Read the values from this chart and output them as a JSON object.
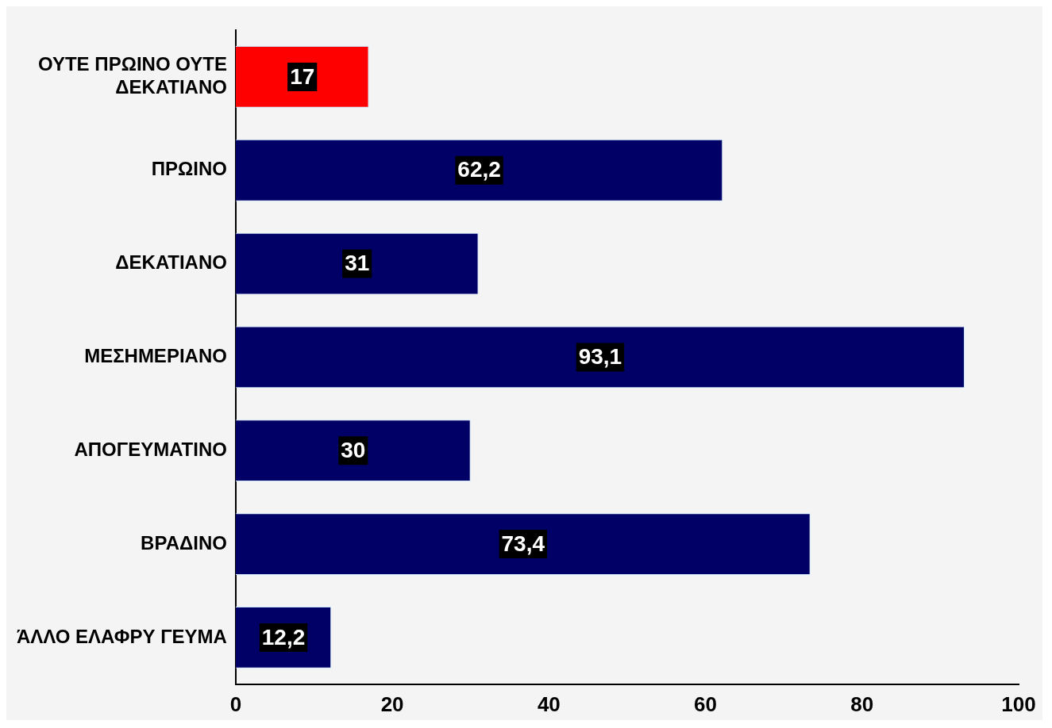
{
  "chart_data": {
    "type": "bar",
    "orientation": "horizontal",
    "categories": [
      "ΟΥΤΕ ΠΡΩΙΝΟ ΟΥΤΕ ΔΕΚΑΤΙΑΝΟ",
      "ΠΡΩΙΝΟ",
      "ΔΕΚΑΤΙΑΝΟ",
      "ΜΕΣΗΜΕΡΙΑΝΟ",
      "ΑΠΟΓΕΥΜΑΤΙΝΟ",
      "ΒΡΑΔΙΝΟ",
      "ΆΛΛΟ ΕΛΑΦΡΥ ΓΕΥΜΑ"
    ],
    "values": [
      17,
      62.2,
      31,
      93.1,
      30,
      73.4,
      12.2
    ],
    "colors": [
      "#ff0000",
      "#000066",
      "#000066",
      "#000066",
      "#000066",
      "#000066",
      "#000066"
    ],
    "value_labels": [
      "17",
      "62,2",
      "31",
      "93,1",
      "30",
      "73,4",
      "12,2"
    ],
    "xlim": [
      0,
      100
    ],
    "xticks": [
      0,
      20,
      40,
      60,
      80,
      100
    ],
    "grid": false,
    "legend": false
  }
}
